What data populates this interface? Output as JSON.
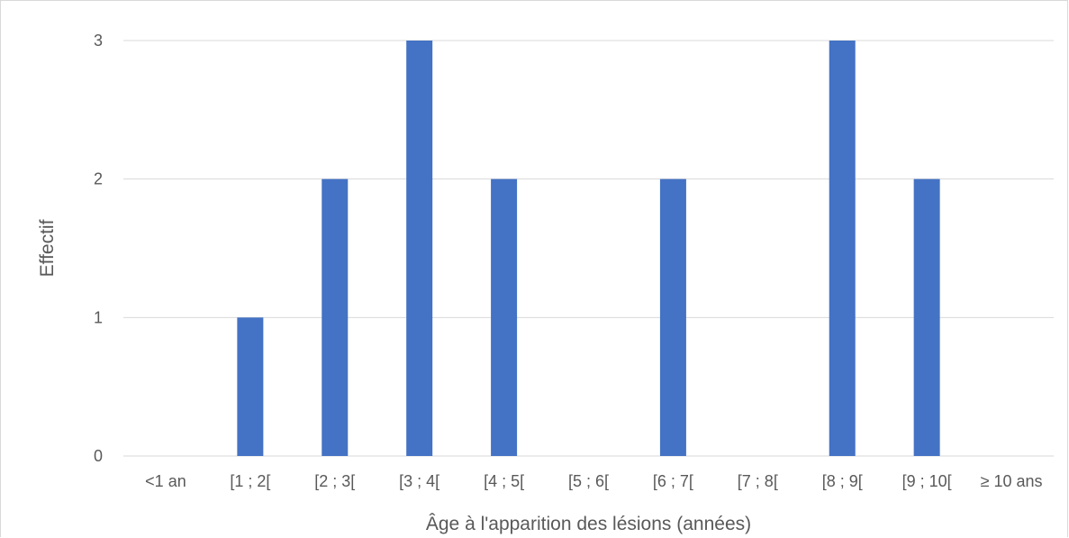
{
  "chart_data": {
    "type": "bar",
    "title": "",
    "xlabel": "Âge à l'apparition des lésions (années)",
    "ylabel": "Effectif",
    "categories": [
      "<1 an",
      "[1 ; 2[",
      "[2 ; 3[",
      "[3 ; 4[",
      "[4 ; 5[",
      "[5 ; 6[",
      "[6 ; 7[",
      "[7 ; 8[",
      "[8 ; 9[",
      "[9 ; 10[",
      "≥ 10 ans"
    ],
    "values": [
      0,
      1,
      2,
      3,
      2,
      0,
      2,
      0,
      3,
      2,
      0
    ],
    "ylim": [
      0,
      3
    ],
    "yticks": [
      "0",
      "1",
      "2",
      "3"
    ],
    "grid": true,
    "legend": "none",
    "colors": {
      "bar": "#4472C4",
      "grid": "#d9d9d9",
      "text": "#595959"
    }
  }
}
